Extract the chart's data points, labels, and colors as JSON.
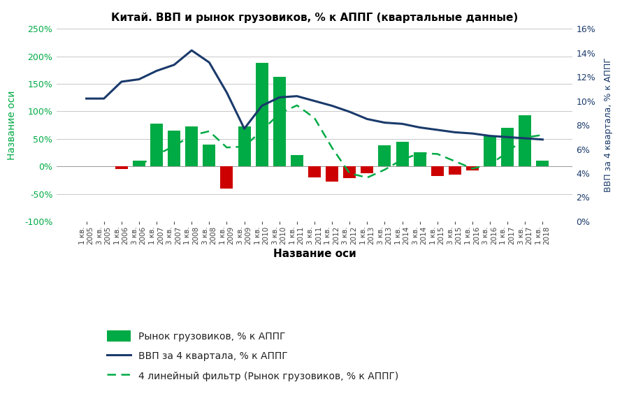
{
  "title": "Китай. ВВП и рынок грузовиков, % к АППГ (квартальные данные)",
  "xlabel": "Название оси",
  "ylabel_left": "Название оси",
  "ylabel_right": "ВВП за 4 квартала, % к АППГ",
  "background_color": "#ffffff",
  "grid_color": "#c8c8c8",
  "left_axis_color": "#00aa44",
  "right_axis_color": "#1a3a6b",
  "line_color": "#1a3a6b",
  "filter_color": "#00aa44",
  "bar_pos_color": "#00aa44",
  "bar_neg_color": "#cc0000",
  "ylim_left": [
    -100,
    250
  ],
  "ylim_right": [
    0,
    16
  ],
  "yticks_left": [
    -100,
    -50,
    0,
    50,
    100,
    150,
    200,
    250
  ],
  "yticks_right": [
    0,
    2,
    4,
    6,
    8,
    10,
    12,
    14,
    16
  ],
  "legend_labels": [
    "Рынок грузовиков, % к АППГ",
    "ВВП за 4 квартала, % к АППГ",
    "4 линейный фильтр (Рынок грузовиков, % к АППГ)"
  ],
  "quarters": [
    "1 кв.\n2005",
    "3 кв.\n2005",
    "1 кв.\n2006",
    "3 кв.\n2006",
    "1 кв.\n2007",
    "3 кв.\n2007",
    "1 кв.\n2008",
    "3 кв.\n2008",
    "1 кв.\n2009",
    "3 кв.\n2009",
    "1 кв.\n2010",
    "3 кв.\n2010",
    "1 кв.\n2011",
    "3 кв.\n2011",
    "1 кв.\n2012",
    "3 кв.\n2012",
    "1 кв.\n2013",
    "3 кв.\n2013",
    "1 кв.\n2014",
    "3 кв.\n2014",
    "1 кв.\n2015",
    "3 кв.\n2015",
    "1 кв.\n2016",
    "3 кв.\n2016",
    "1 кв.\n2017",
    "3 кв.\n2017",
    "1 кв.\n2018"
  ],
  "bar_values": [
    0,
    0,
    -5,
    10,
    78,
    65,
    72,
    40,
    -40,
    72,
    188,
    163,
    20,
    -20,
    -28,
    -22,
    -12,
    38,
    45,
    25,
    -18,
    -15,
    -8,
    55,
    70,
    93,
    10
  ],
  "gdp_values": [
    10.2,
    10.2,
    11.6,
    11.8,
    12.5,
    13.0,
    14.2,
    13.2,
    10.7,
    7.7,
    9.6,
    10.3,
    10.4,
    10.0,
    9.6,
    9.1,
    8.5,
    8.2,
    8.1,
    7.8,
    7.6,
    7.4,
    7.3,
    7.1,
    7.0,
    6.9,
    6.8
  ]
}
